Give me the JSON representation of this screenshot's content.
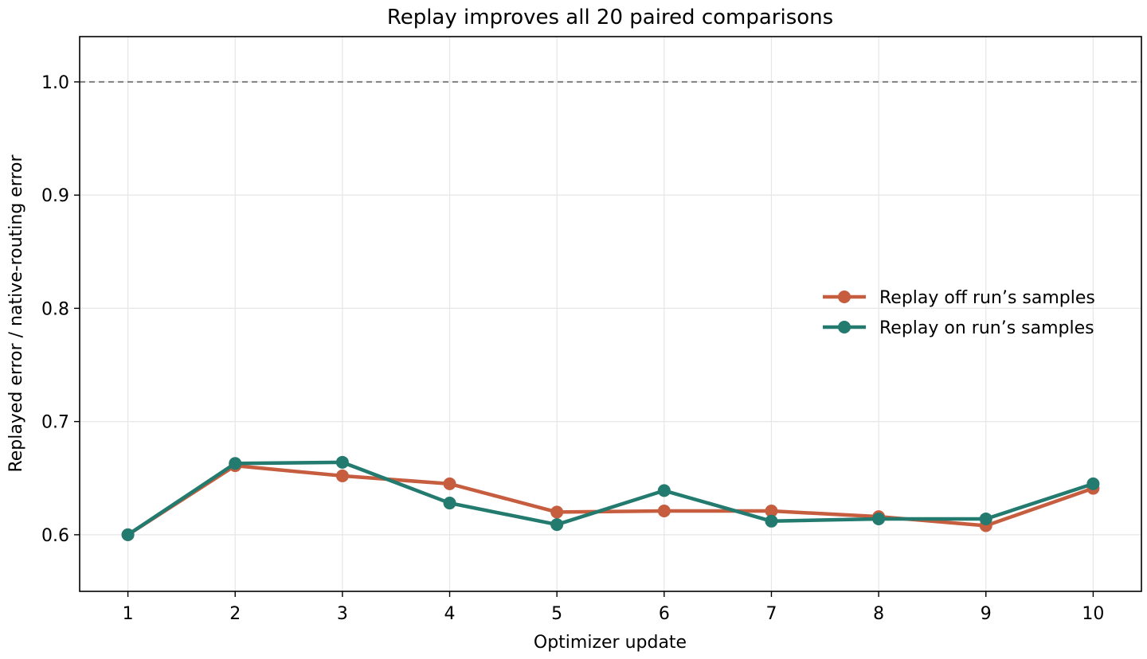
{
  "chart_data": {
    "type": "line",
    "title": "Replay improves all 20 paired comparisons",
    "xlabel": "Optimizer update",
    "ylabel": "Replayed error / native-routing error",
    "x": [
      1,
      2,
      3,
      4,
      5,
      6,
      7,
      8,
      9,
      10
    ],
    "xlim": [
      0.55,
      10.45
    ],
    "ylim": [
      0.55,
      1.04
    ],
    "yticks": [
      0.6,
      0.7,
      0.8,
      0.9,
      1.0
    ],
    "ytick_labels": [
      "0.6",
      "0.7",
      "0.8",
      "0.9",
      "1.0"
    ],
    "xtick_labels": [
      "1",
      "2",
      "3",
      "4",
      "5",
      "6",
      "7",
      "8",
      "9",
      "10"
    ],
    "grid": true,
    "reference_line": {
      "y": 1.0,
      "style": "dashed",
      "color": "#808080"
    },
    "legend_position": "center-right",
    "series": [
      {
        "name": "Replay off run’s samples",
        "color": "#C65D3F",
        "values": [
          0.6,
          0.661,
          0.652,
          0.645,
          0.62,
          0.621,
          0.621,
          0.616,
          0.608,
          0.641
        ]
      },
      {
        "name": "Replay on run’s samples",
        "color": "#237A6E",
        "values": [
          0.6,
          0.663,
          0.664,
          0.628,
          0.609,
          0.639,
          0.612,
          0.614,
          0.614,
          0.645
        ]
      }
    ]
  }
}
